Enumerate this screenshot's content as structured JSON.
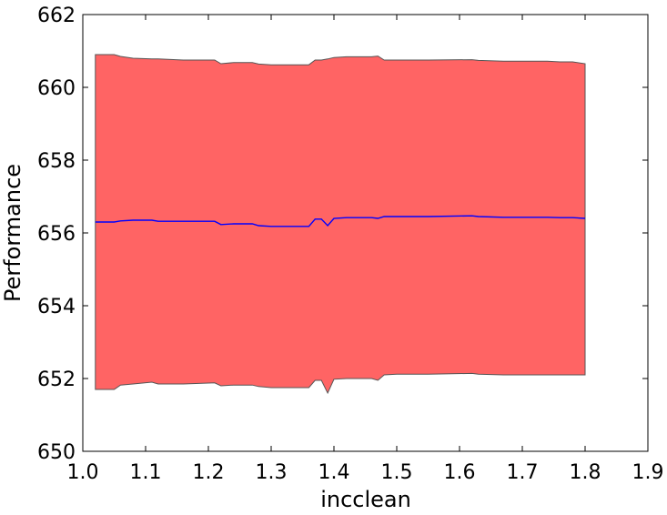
{
  "chart_data": {
    "type": "area",
    "title": "",
    "xlabel": "incclean",
    "ylabel": "Performance",
    "xlim": [
      1.0,
      1.9
    ],
    "ylim": [
      650,
      662
    ],
    "xticks": [
      "1.0",
      "1.1",
      "1.2",
      "1.3",
      "1.4",
      "1.5",
      "1.6",
      "1.7",
      "1.8",
      "1.9"
    ],
    "yticks": [
      "650",
      "652",
      "654",
      "656",
      "658",
      "660",
      "662"
    ],
    "grid": false,
    "legend": "none",
    "colors": {
      "band": "#ff6464",
      "band_edge": "#555555",
      "line": "#0000ff"
    },
    "series": [
      {
        "x": [
          1.02,
          1.05,
          1.06,
          1.08,
          1.11,
          1.12,
          1.16,
          1.21,
          1.22,
          1.24,
          1.27,
          1.28,
          1.3,
          1.36,
          1.37,
          1.38,
          1.39,
          1.4,
          1.42,
          1.46,
          1.47,
          1.48,
          1.5,
          1.55,
          1.62,
          1.63,
          1.67,
          1.74,
          1.76,
          1.78,
          1.8
        ],
        "mean": [
          656.3,
          656.3,
          656.33,
          656.35,
          656.35,
          656.32,
          656.32,
          656.32,
          656.23,
          656.25,
          656.25,
          656.2,
          656.18,
          656.18,
          656.38,
          656.38,
          656.2,
          656.4,
          656.42,
          656.42,
          656.4,
          656.45,
          656.45,
          656.45,
          656.47,
          656.45,
          656.43,
          656.43,
          656.42,
          656.42,
          656.4
        ],
        "upper": [
          660.9,
          660.9,
          660.85,
          660.8,
          660.78,
          660.78,
          660.75,
          660.75,
          660.65,
          660.68,
          660.68,
          660.64,
          660.62,
          660.62,
          660.75,
          660.75,
          660.78,
          660.82,
          660.84,
          660.84,
          660.86,
          660.75,
          660.75,
          660.75,
          660.76,
          660.74,
          660.72,
          660.72,
          660.7,
          660.7,
          660.65
        ],
        "lower": [
          651.7,
          651.7,
          651.82,
          651.85,
          651.9,
          651.85,
          651.85,
          651.88,
          651.8,
          651.82,
          651.82,
          651.78,
          651.75,
          651.75,
          651.95,
          651.95,
          651.6,
          651.98,
          652.0,
          652.0,
          651.95,
          652.1,
          652.12,
          652.12,
          652.14,
          652.12,
          652.1,
          652.1,
          652.1,
          652.1,
          652.1
        ]
      }
    ]
  }
}
